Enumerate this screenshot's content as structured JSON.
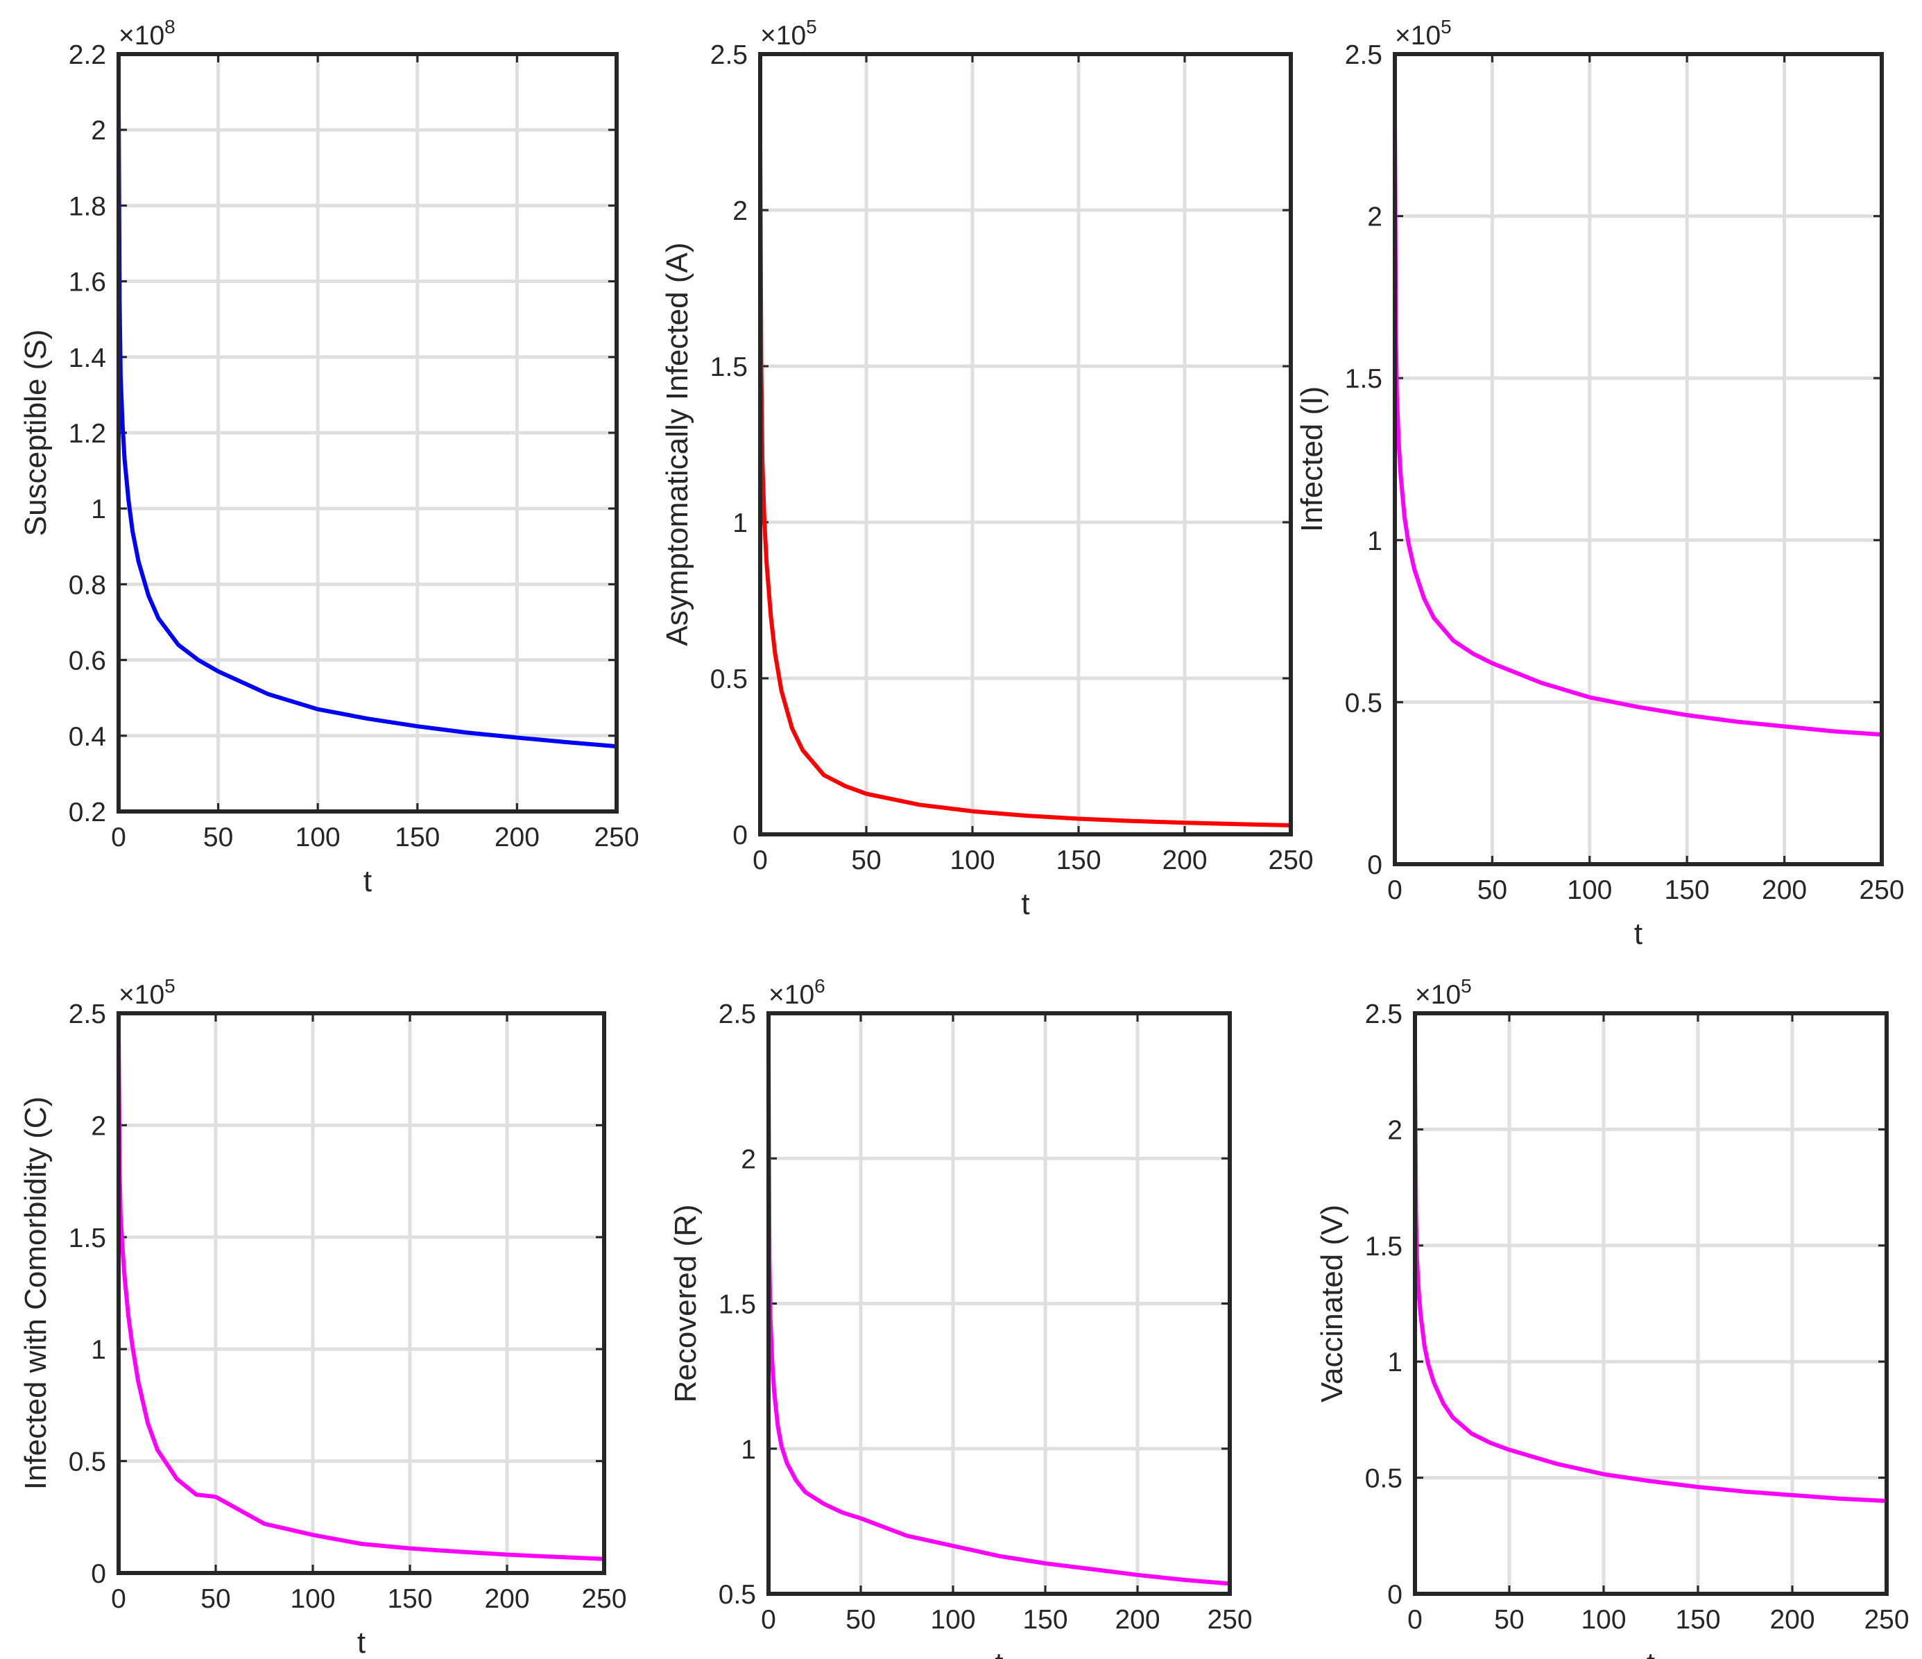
{
  "figure": {
    "description_title": ""
  },
  "chart_data": [
    {
      "type": "line",
      "title": "",
      "xlabel": "t",
      "ylabel": "Susceptible (S)",
      "exponent_label": "×10",
      "exponent_power": "8",
      "xlim": [
        0,
        250
      ],
      "ylim": [
        0.2,
        2.2
      ],
      "xticks": [
        "0",
        "50",
        "100",
        "150",
        "200",
        "250"
      ],
      "yticks": [
        "0.2",
        "0.4",
        "0.6",
        "0.8",
        "1",
        "1.2",
        "1.4",
        "1.6",
        "1.8",
        "2",
        "2.2"
      ],
      "grid": true,
      "color": "#0000ff",
      "series": [
        {
          "name": "S",
          "x": [
            0,
            0.5,
            1,
            2,
            3,
            5,
            7,
            10,
            15,
            20,
            30,
            40,
            50,
            75,
            100,
            125,
            150,
            175,
            200,
            225,
            250
          ],
          "values": [
            2.07,
            1.55,
            1.35,
            1.22,
            1.13,
            1.02,
            0.94,
            0.86,
            0.77,
            0.71,
            0.64,
            0.6,
            0.57,
            0.51,
            0.47,
            0.445,
            0.425,
            0.408,
            0.395,
            0.383,
            0.372
          ]
        }
      ]
    },
    {
      "type": "line",
      "title": "",
      "xlabel": "t",
      "ylabel": "Asymptomatically Infected (A)",
      "exponent_label": "×10",
      "exponent_power": "5",
      "xlim": [
        0,
        250
      ],
      "ylim": [
        0,
        2.5
      ],
      "xticks": [
        "0",
        "50",
        "100",
        "150",
        "200",
        "250"
      ],
      "yticks": [
        "0",
        "0.5",
        "1",
        "1.5",
        "2",
        "2.5"
      ],
      "grid": true,
      "color": "#ff0000",
      "series": [
        {
          "name": "A",
          "x": [
            0,
            0.5,
            1,
            2,
            3,
            5,
            7,
            10,
            15,
            20,
            30,
            40,
            50,
            75,
            100,
            125,
            150,
            175,
            200,
            225,
            250
          ],
          "values": [
            2.22,
            1.5,
            1.2,
            1.0,
            0.87,
            0.7,
            0.58,
            0.46,
            0.34,
            0.27,
            0.19,
            0.155,
            0.13,
            0.095,
            0.074,
            0.06,
            0.05,
            0.043,
            0.037,
            0.033,
            0.029
          ]
        }
      ]
    },
    {
      "type": "line",
      "title": "",
      "xlabel": "t",
      "ylabel": "Infected (I)",
      "exponent_label": "×10",
      "exponent_power": "5",
      "xlim": [
        0,
        250
      ],
      "ylim": [
        0,
        2.5
      ],
      "xticks": [
        "0",
        "50",
        "100",
        "150",
        "200",
        "250"
      ],
      "yticks": [
        "0",
        "0.5",
        "1",
        "1.5",
        "2",
        "2.5"
      ],
      "grid": true,
      "color": "#ff00ff",
      "series": [
        {
          "name": "I",
          "x": [
            0,
            0.5,
            1,
            2,
            3,
            5,
            7,
            10,
            15,
            20,
            30,
            40,
            50,
            75,
            100,
            125,
            150,
            175,
            200,
            225,
            250
          ],
          "values": [
            2.3,
            1.65,
            1.45,
            1.3,
            1.2,
            1.07,
            0.99,
            0.91,
            0.82,
            0.76,
            0.69,
            0.65,
            0.62,
            0.56,
            0.515,
            0.485,
            0.46,
            0.44,
            0.425,
            0.41,
            0.4
          ]
        }
      ]
    },
    {
      "type": "line",
      "title": "",
      "xlabel": "t",
      "ylabel": "Infected with Comorbidity (C)",
      "exponent_label": "×10",
      "exponent_power": "5",
      "xlim": [
        0,
        250
      ],
      "ylim": [
        0,
        2.5
      ],
      "xticks": [
        "0",
        "50",
        "100",
        "150",
        "200",
        "250"
      ],
      "yticks": [
        "0",
        "0.5",
        "1",
        "1.5",
        "2",
        "2.5"
      ],
      "grid": true,
      "color": "#ff00ff",
      "series": [
        {
          "name": "C",
          "x": [
            0,
            0.5,
            1,
            2,
            3,
            5,
            7,
            10,
            15,
            20,
            30,
            40,
            50,
            75,
            100,
            125,
            150,
            175,
            200,
            225,
            250
          ],
          "values": [
            2.4,
            1.8,
            1.6,
            1.45,
            1.33,
            1.15,
            1.02,
            0.86,
            0.67,
            0.55,
            0.42,
            0.35,
            0.34,
            0.22,
            0.17,
            0.13,
            0.11,
            0.095,
            0.082,
            0.072,
            0.063
          ]
        }
      ]
    },
    {
      "type": "line",
      "title": "",
      "xlabel": "t",
      "ylabel": "Recovered (R)",
      "exponent_label": "×10",
      "exponent_power": "6",
      "xlim": [
        0,
        250
      ],
      "ylim": [
        0.5,
        2.5
      ],
      "xticks": [
        "0",
        "50",
        "100",
        "150",
        "200",
        "250"
      ],
      "yticks": [
        "0.5",
        "1",
        "1.5",
        "2",
        "2.5"
      ],
      "grid": true,
      "color": "#ff00ff",
      "series": [
        {
          "name": "R",
          "x": [
            0,
            0.5,
            1,
            2,
            3,
            5,
            7,
            10,
            15,
            20,
            30,
            40,
            50,
            75,
            100,
            125,
            150,
            175,
            200,
            225,
            250
          ],
          "values": [
            2.33,
            1.65,
            1.45,
            1.3,
            1.2,
            1.08,
            1.01,
            0.95,
            0.89,
            0.85,
            0.81,
            0.78,
            0.76,
            0.7,
            0.665,
            0.63,
            0.605,
            0.585,
            0.565,
            0.548,
            0.535
          ]
        }
      ]
    },
    {
      "type": "line",
      "title": "",
      "xlabel": "t",
      "ylabel": "Vaccinated (V)",
      "exponent_label": "×10",
      "exponent_power": "5",
      "xlim": [
        0,
        250
      ],
      "ylim": [
        0,
        2.5
      ],
      "xticks": [
        "0",
        "50",
        "100",
        "150",
        "200",
        "250"
      ],
      "yticks": [
        "0",
        "0.5",
        "1",
        "1.5",
        "2",
        "2.5"
      ],
      "grid": true,
      "color": "#ff00ff",
      "series": [
        {
          "name": "V",
          "x": [
            0,
            0.5,
            1,
            2,
            3,
            5,
            7,
            10,
            15,
            20,
            30,
            40,
            50,
            75,
            100,
            125,
            150,
            175,
            200,
            225,
            250
          ],
          "values": [
            2.3,
            1.65,
            1.45,
            1.3,
            1.2,
            1.07,
            0.99,
            0.91,
            0.82,
            0.76,
            0.69,
            0.65,
            0.62,
            0.56,
            0.515,
            0.485,
            0.46,
            0.44,
            0.425,
            0.41,
            0.4
          ]
        }
      ]
    }
  ]
}
